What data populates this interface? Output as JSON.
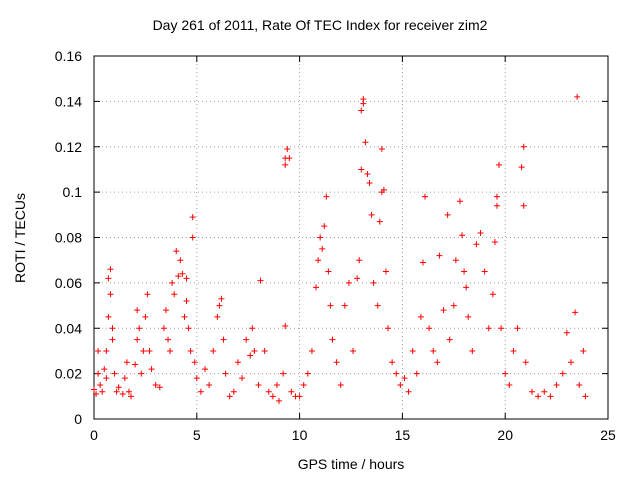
{
  "chart_data": {
    "type": "scatter",
    "title": "Day 261 of 2011, Rate Of TEC Index for receiver zim2",
    "xlabel": "GPS time / hours",
    "ylabel": "ROTI / TECUs",
    "xlim": [
      0,
      25
    ],
    "ylim": [
      0,
      0.16
    ],
    "x_ticks": [
      "0",
      "5",
      "10",
      "15",
      "20",
      "25"
    ],
    "y_ticks": [
      "0",
      "0.02",
      "0.04",
      "0.06",
      "0.08",
      "0.1",
      "0.12",
      "0.14",
      "0.16"
    ],
    "grid": true,
    "marker": "+",
    "color": "#ff0000",
    "series": [
      {
        "points": [
          [
            0.0,
            0.013
          ],
          [
            0.1,
            0.011
          ],
          [
            0.2,
            0.02
          ],
          [
            0.2,
            0.03
          ],
          [
            0.3,
            0.015
          ],
          [
            0.4,
            0.012
          ],
          [
            0.5,
            0.022
          ],
          [
            0.6,
            0.018
          ],
          [
            0.6,
            0.03
          ],
          [
            0.7,
            0.045
          ],
          [
            0.7,
            0.062
          ],
          [
            0.8,
            0.066
          ],
          [
            0.8,
            0.055
          ],
          [
            0.9,
            0.035
          ],
          [
            0.9,
            0.04
          ],
          [
            1.0,
            0.02
          ],
          [
            1.1,
            0.012
          ],
          [
            1.2,
            0.014
          ],
          [
            1.4,
            0.011
          ],
          [
            1.5,
            0.018
          ],
          [
            1.6,
            0.025
          ],
          [
            1.7,
            0.012
          ],
          [
            1.8,
            0.01
          ],
          [
            2.0,
            0.024
          ],
          [
            2.1,
            0.035
          ],
          [
            2.1,
            0.048
          ],
          [
            2.2,
            0.04
          ],
          [
            2.3,
            0.02
          ],
          [
            2.4,
            0.03
          ],
          [
            2.5,
            0.045
          ],
          [
            2.6,
            0.055
          ],
          [
            2.7,
            0.03
          ],
          [
            2.8,
            0.022
          ],
          [
            3.0,
            0.015
          ],
          [
            3.2,
            0.014
          ],
          [
            3.4,
            0.04
          ],
          [
            3.5,
            0.048
          ],
          [
            3.6,
            0.035
          ],
          [
            3.7,
            0.03
          ],
          [
            3.8,
            0.06
          ],
          [
            3.9,
            0.055
          ],
          [
            4.0,
            0.074
          ],
          [
            4.1,
            0.063
          ],
          [
            4.2,
            0.07
          ],
          [
            4.3,
            0.064
          ],
          [
            4.4,
            0.045
          ],
          [
            4.5,
            0.052
          ],
          [
            4.5,
            0.062
          ],
          [
            4.6,
            0.04
          ],
          [
            4.7,
            0.03
          ],
          [
            4.8,
            0.08
          ],
          [
            4.8,
            0.089
          ],
          [
            4.9,
            0.025
          ],
          [
            5.0,
            0.018
          ],
          [
            5.2,
            0.012
          ],
          [
            5.4,
            0.022
          ],
          [
            5.6,
            0.015
          ],
          [
            5.8,
            0.03
          ],
          [
            6.0,
            0.045
          ],
          [
            6.1,
            0.05
          ],
          [
            6.2,
            0.053
          ],
          [
            6.3,
            0.035
          ],
          [
            6.4,
            0.02
          ],
          [
            6.6,
            0.01
          ],
          [
            6.8,
            0.012
          ],
          [
            7.0,
            0.025
          ],
          [
            7.2,
            0.018
          ],
          [
            7.4,
            0.035
          ],
          [
            7.6,
            0.028
          ],
          [
            7.7,
            0.04
          ],
          [
            7.8,
            0.03
          ],
          [
            8.0,
            0.015
          ],
          [
            8.1,
            0.061
          ],
          [
            8.3,
            0.03
          ],
          [
            8.5,
            0.012
          ],
          [
            8.7,
            0.01
          ],
          [
            8.9,
            0.015
          ],
          [
            9.0,
            0.008
          ],
          [
            9.2,
            0.02
          ],
          [
            9.3,
            0.041
          ],
          [
            9.3,
            0.112
          ],
          [
            9.3,
            0.115
          ],
          [
            9.4,
            0.119
          ],
          [
            9.5,
            0.115
          ],
          [
            9.6,
            0.012
          ],
          [
            9.8,
            0.01
          ],
          [
            10.0,
            0.01
          ],
          [
            10.2,
            0.015
          ],
          [
            10.4,
            0.02
          ],
          [
            10.6,
            0.03
          ],
          [
            10.8,
            0.058
          ],
          [
            10.9,
            0.07
          ],
          [
            11.0,
            0.08
          ],
          [
            11.1,
            0.075
          ],
          [
            11.2,
            0.085
          ],
          [
            11.3,
            0.098
          ],
          [
            11.4,
            0.065
          ],
          [
            11.5,
            0.05
          ],
          [
            11.6,
            0.035
          ],
          [
            11.8,
            0.025
          ],
          [
            12.0,
            0.015
          ],
          [
            12.2,
            0.05
          ],
          [
            12.4,
            0.06
          ],
          [
            12.6,
            0.03
          ],
          [
            12.8,
            0.062
          ],
          [
            12.9,
            0.07
          ],
          [
            13.0,
            0.11
          ],
          [
            13.0,
            0.136
          ],
          [
            13.1,
            0.139
          ],
          [
            13.1,
            0.141
          ],
          [
            13.2,
            0.122
          ],
          [
            13.3,
            0.108
          ],
          [
            13.4,
            0.104
          ],
          [
            13.5,
            0.09
          ],
          [
            13.6,
            0.06
          ],
          [
            13.8,
            0.05
          ],
          [
            13.9,
            0.087
          ],
          [
            14.0,
            0.1
          ],
          [
            14.0,
            0.119
          ],
          [
            14.1,
            0.101
          ],
          [
            14.2,
            0.065
          ],
          [
            14.3,
            0.04
          ],
          [
            14.5,
            0.025
          ],
          [
            14.7,
            0.02
          ],
          [
            14.9,
            0.015
          ],
          [
            15.1,
            0.018
          ],
          [
            15.3,
            0.012
          ],
          [
            15.5,
            0.03
          ],
          [
            15.7,
            0.02
          ],
          [
            15.9,
            0.045
          ],
          [
            16.0,
            0.069
          ],
          [
            16.1,
            0.098
          ],
          [
            16.3,
            0.04
          ],
          [
            16.5,
            0.03
          ],
          [
            16.7,
            0.025
          ],
          [
            16.8,
            0.072
          ],
          [
            17.0,
            0.048
          ],
          [
            17.2,
            0.09
          ],
          [
            17.3,
            0.035
          ],
          [
            17.5,
            0.05
          ],
          [
            17.6,
            0.07
          ],
          [
            17.8,
            0.096
          ],
          [
            17.9,
            0.081
          ],
          [
            18.0,
            0.065
          ],
          [
            18.1,
            0.058
          ],
          [
            18.2,
            0.045
          ],
          [
            18.4,
            0.03
          ],
          [
            18.6,
            0.077
          ],
          [
            18.8,
            0.082
          ],
          [
            19.0,
            0.065
          ],
          [
            19.2,
            0.04
          ],
          [
            19.4,
            0.055
          ],
          [
            19.5,
            0.078
          ],
          [
            19.6,
            0.094
          ],
          [
            19.6,
            0.098
          ],
          [
            19.7,
            0.112
          ],
          [
            19.8,
            0.04
          ],
          [
            20.0,
            0.02
          ],
          [
            20.2,
            0.015
          ],
          [
            20.4,
            0.03
          ],
          [
            20.6,
            0.04
          ],
          [
            20.8,
            0.111
          ],
          [
            20.9,
            0.12
          ],
          [
            20.9,
            0.094
          ],
          [
            21.0,
            0.025
          ],
          [
            21.3,
            0.012
          ],
          [
            21.6,
            0.01
          ],
          [
            21.9,
            0.012
          ],
          [
            22.2,
            0.01
          ],
          [
            22.5,
            0.015
          ],
          [
            22.8,
            0.02
          ],
          [
            23.0,
            0.038
          ],
          [
            23.2,
            0.025
          ],
          [
            23.4,
            0.047
          ],
          [
            23.5,
            0.142
          ],
          [
            23.6,
            0.015
          ],
          [
            23.8,
            0.03
          ],
          [
            23.9,
            0.01
          ]
        ]
      }
    ]
  }
}
